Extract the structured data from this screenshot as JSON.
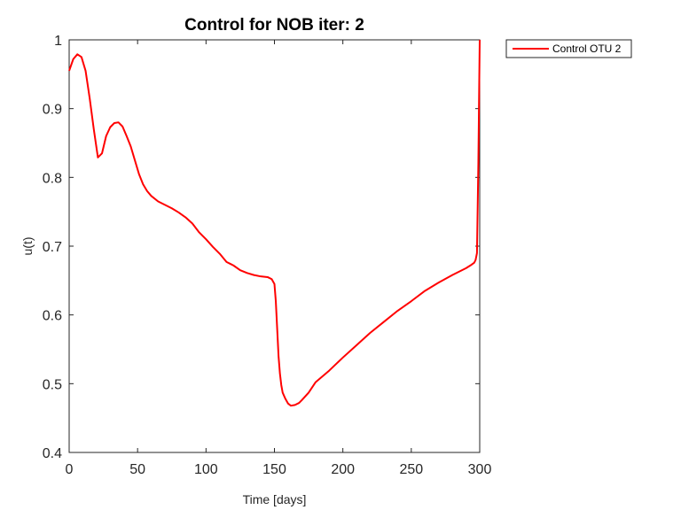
{
  "chart_data": {
    "type": "line",
    "title": "Control for NOB iter: 2",
    "xlabel": "Time [days]",
    "ylabel": "u(t)",
    "xlim": [
      0,
      300
    ],
    "ylim": [
      0.4,
      1
    ],
    "xticks": [
      0,
      50,
      100,
      150,
      200,
      250,
      300
    ],
    "xtick_labels": [
      "0",
      "50",
      "100",
      "150",
      "200",
      "250",
      "300"
    ],
    "yticks": [
      0.4,
      0.5,
      0.6,
      0.7,
      0.8,
      0.9,
      1
    ],
    "ytick_labels": [
      "0.4",
      "0.5",
      "0.6",
      "0.7",
      "0.8",
      "0.9",
      "1"
    ],
    "grid": false,
    "legend_position": "outside-top-right",
    "series": [
      {
        "name": "Control OTU 2",
        "color": "#ff0000",
        "x": [
          0,
          3,
          6,
          9,
          12,
          15,
          18,
          21,
          24,
          27,
          30,
          33,
          36,
          39,
          42,
          45,
          48,
          51,
          54,
          57,
          60,
          65,
          70,
          75,
          80,
          85,
          90,
          95,
          100,
          105,
          110,
          115,
          118,
          120,
          125,
          130,
          135,
          140,
          145,
          148,
          150,
          151,
          152,
          153,
          154,
          155,
          156,
          158,
          160,
          162,
          165,
          168,
          170,
          175,
          180,
          190,
          200,
          210,
          220,
          230,
          240,
          250,
          260,
          270,
          280,
          290,
          294,
          296,
          297,
          298,
          299,
          300
        ],
        "y": [
          0.955,
          0.972,
          0.979,
          0.975,
          0.955,
          0.915,
          0.87,
          0.829,
          0.835,
          0.86,
          0.873,
          0.879,
          0.88,
          0.874,
          0.86,
          0.845,
          0.825,
          0.805,
          0.79,
          0.78,
          0.773,
          0.765,
          0.76,
          0.755,
          0.749,
          0.742,
          0.733,
          0.72,
          0.71,
          0.699,
          0.689,
          0.677,
          0.674,
          0.672,
          0.665,
          0.661,
          0.658,
          0.656,
          0.655,
          0.652,
          0.645,
          0.62,
          0.58,
          0.54,
          0.515,
          0.498,
          0.487,
          0.478,
          0.471,
          0.468,
          0.469,
          0.472,
          0.476,
          0.487,
          0.502,
          0.519,
          0.538,
          0.556,
          0.574,
          0.59,
          0.606,
          0.62,
          0.635,
          0.647,
          0.658,
          0.668,
          0.673,
          0.676,
          0.68,
          0.69,
          0.82,
          1.0
        ]
      }
    ]
  }
}
